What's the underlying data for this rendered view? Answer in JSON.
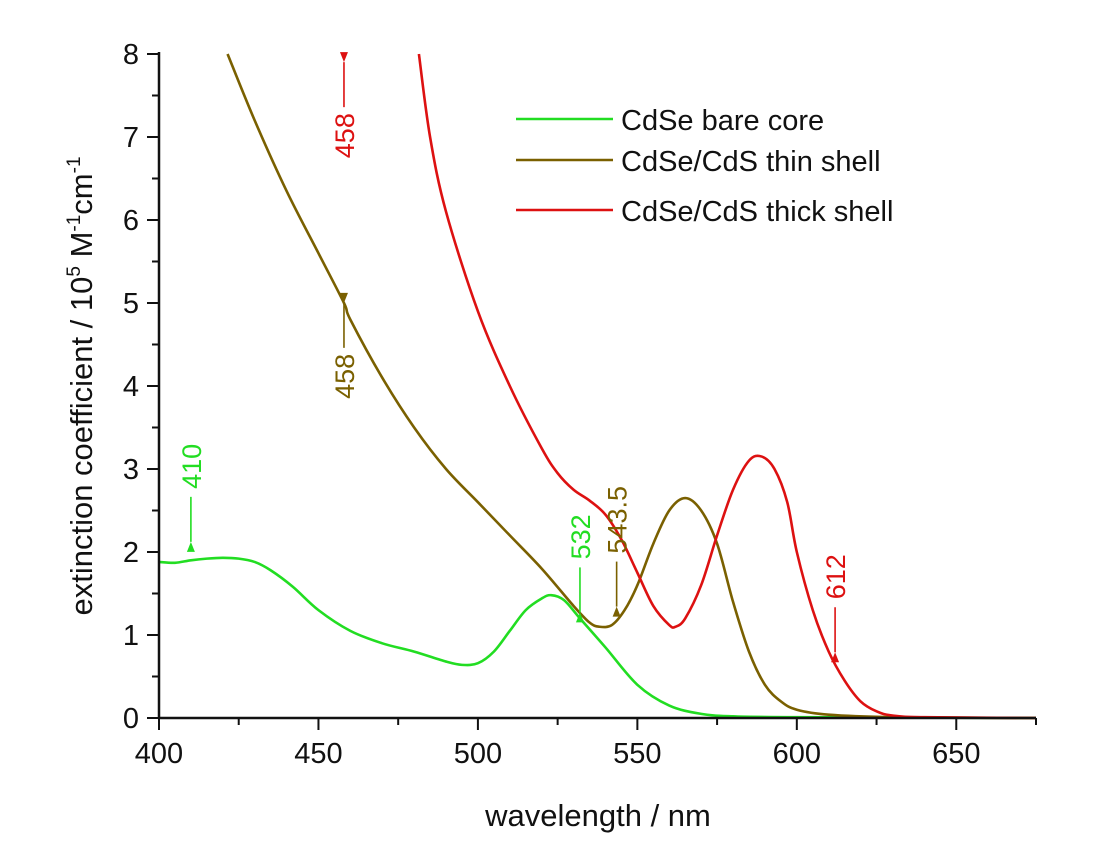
{
  "chart_data": {
    "type": "line",
    "xlabel": "wavelength / nm",
    "ylabel_parts": {
      "main": "extinction coefficient / 10",
      "exp1": "5",
      "mid": " M",
      "exp2": "-1",
      "mid2": "cm",
      "exp3": "-1"
    },
    "xlim": [
      400,
      675
    ],
    "ylim": [
      0,
      8
    ],
    "xticks": [
      400,
      450,
      500,
      550,
      600,
      650
    ],
    "yticks": [
      0,
      1,
      2,
      3,
      4,
      5,
      6,
      7,
      8
    ],
    "grid": false,
    "legend_position": "top-right",
    "series": [
      {
        "name": "CdSe bare core",
        "color": "#22dd22",
        "x": [
          400,
          405,
          410,
          415,
          420,
          425,
          430,
          435,
          442,
          450,
          460,
          470,
          480,
          490,
          495,
          500,
          505,
          510,
          515,
          520,
          523,
          527,
          532,
          540,
          550,
          560,
          570,
          580,
          600,
          675
        ],
        "y": [
          1.88,
          1.87,
          1.9,
          1.92,
          1.93,
          1.92,
          1.88,
          1.78,
          1.58,
          1.3,
          1.05,
          0.9,
          0.8,
          0.68,
          0.64,
          0.66,
          0.8,
          1.05,
          1.3,
          1.44,
          1.48,
          1.42,
          1.2,
          0.85,
          0.4,
          0.15,
          0.05,
          0.02,
          0.01,
          0
        ]
      },
      {
        "name": "CdSe/CdS thin shell",
        "color": "#7a6000",
        "x": [
          421.5,
          430,
          440,
          450,
          458,
          460,
          470,
          480,
          490,
          500,
          510,
          520,
          530,
          535,
          538,
          542,
          546,
          550,
          555,
          560,
          565,
          570,
          575,
          580,
          585,
          590,
          595,
          600,
          610,
          630,
          675
        ],
        "y": [
          8,
          7.2,
          6.35,
          5.6,
          5.0,
          4.8,
          4.1,
          3.5,
          3.0,
          2.6,
          2.2,
          1.8,
          1.35,
          1.15,
          1.1,
          1.12,
          1.3,
          1.6,
          2.1,
          2.5,
          2.65,
          2.5,
          2.1,
          1.4,
          0.8,
          0.4,
          0.2,
          0.1,
          0.04,
          0.01,
          0
        ]
      },
      {
        "name": "CdSe/CdS thick shell",
        "color": "#dd1111",
        "x": [
          481.5,
          485,
          490,
          500,
          510,
          520,
          525,
          530,
          535,
          540,
          545,
          550,
          555,
          560,
          562,
          565,
          570,
          575,
          580,
          585,
          589,
          593,
          597,
          600,
          605,
          610,
          615,
          620,
          625,
          630,
          640,
          675
        ],
        "y": [
          8,
          7.0,
          6.1,
          4.9,
          4.0,
          3.25,
          2.95,
          2.75,
          2.62,
          2.45,
          2.15,
          1.75,
          1.35,
          1.12,
          1.1,
          1.2,
          1.6,
          2.2,
          2.75,
          3.1,
          3.15,
          3.0,
          2.6,
          2.0,
          1.3,
          0.8,
          0.45,
          0.2,
          0.08,
          0.03,
          0.01,
          0
        ]
      }
    ],
    "annotations": [
      {
        "text": "410",
        "x": 410,
        "y": 2.05,
        "direction": "down",
        "color": "#22dd22"
      },
      {
        "text": "458",
        "x": 458,
        "y": 5.05,
        "direction": "up",
        "color": "#7a6000"
      },
      {
        "text": "458",
        "x": 458,
        "y": 7.95,
        "direction": "up",
        "color": "#dd1111"
      },
      {
        "text": "532",
        "x": 532,
        "y": 1.2,
        "direction": "down",
        "color": "#22dd22"
      },
      {
        "text": "543.5",
        "x": 543.5,
        "y": 1.27,
        "direction": "down",
        "color": "#7a6000"
      },
      {
        "text": "612",
        "x": 612,
        "y": 0.72,
        "direction": "down",
        "color": "#dd1111"
      }
    ]
  }
}
